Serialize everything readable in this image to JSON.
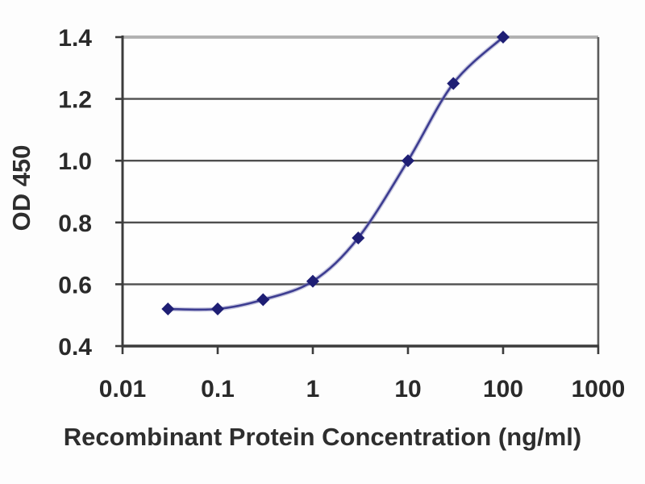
{
  "figure": {
    "kind": "elisa-standard-curve",
    "background": "#fdfdfd"
  },
  "chart_data": {
    "type": "line",
    "title": "",
    "xlabel": "Recombinant Protein Concentration (ng/ml)",
    "ylabel": "OD 450",
    "x_scale": "log",
    "xlim": [
      0.01,
      1000
    ],
    "ylim": [
      0.4,
      1.4
    ],
    "grid": "horizontal",
    "legend": "none",
    "marker_shape": "diamond",
    "x": [
      0.03,
      0.1,
      0.3,
      1,
      3,
      10,
      30,
      100
    ],
    "y": [
      0.52,
      0.52,
      0.55,
      0.61,
      0.75,
      1.0,
      1.25,
      1.4
    ],
    "x_ticks": [
      0.01,
      0.1,
      1,
      10,
      100,
      1000
    ],
    "x_tick_labels": [
      "0.01",
      "0.1",
      "1",
      "10",
      "100",
      "1000"
    ],
    "y_ticks": [
      0.4,
      0.6,
      0.8,
      1.0,
      1.2,
      1.4
    ],
    "y_tick_labels": [
      "0.4",
      "0.6",
      "0.8",
      "1.0",
      "1.2",
      "1.4"
    ],
    "colors": {
      "marker": "#1e1e74",
      "line": "#3d3d91",
      "line_halo": "#8e8ec0",
      "gridline": "#4f4f4f",
      "top_border": "#b2b2b2",
      "right_border": "#5a5a5a",
      "axis": "#3c3c3c",
      "tick_text": "#2a2a2a",
      "plot_background": "#fefefe"
    }
  }
}
